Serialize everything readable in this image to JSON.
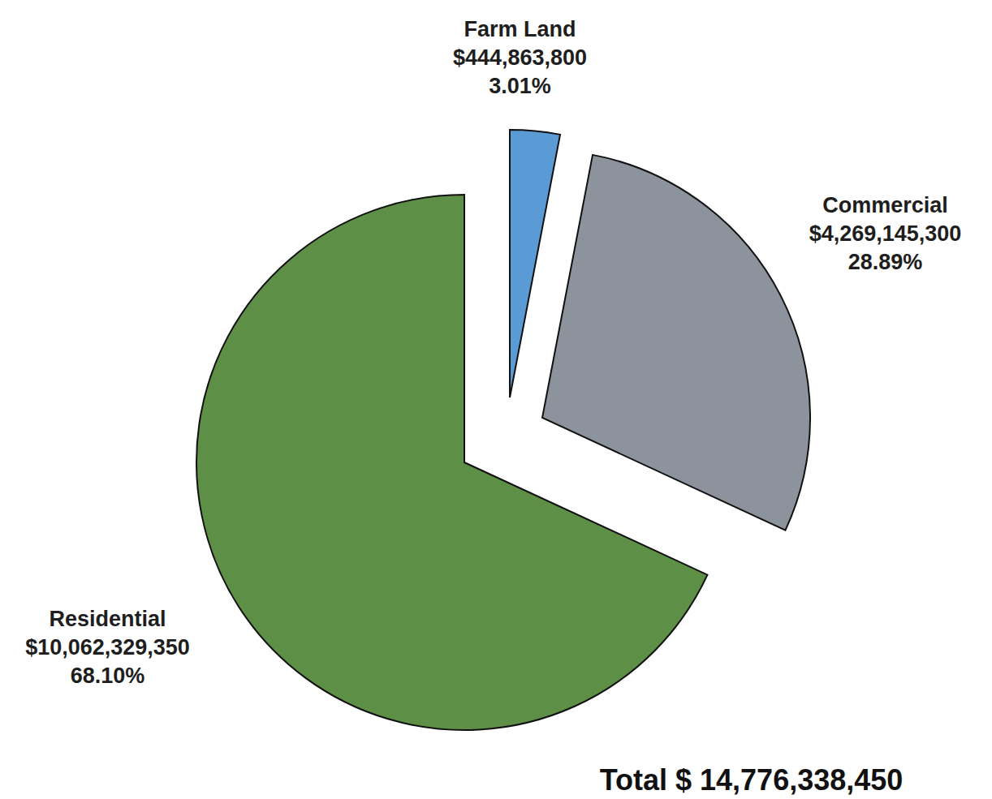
{
  "chart_data": {
    "type": "pie",
    "categories": [
      "Farm Land",
      "Commercial",
      "Residential"
    ],
    "values": [
      3.01,
      28.89,
      68.1
    ],
    "value_labels": [
      "3.01%",
      "28.89%",
      "68.10%"
    ],
    "amount_labels": [
      "$444,863,800",
      "$4,269,145,300",
      "$10,062,329,350"
    ],
    "colors": [
      "#5b9bd5",
      "#8c939c",
      "#5e8f47"
    ],
    "data_labels": true,
    "total_label": "Total $ 14,776,338,450"
  }
}
